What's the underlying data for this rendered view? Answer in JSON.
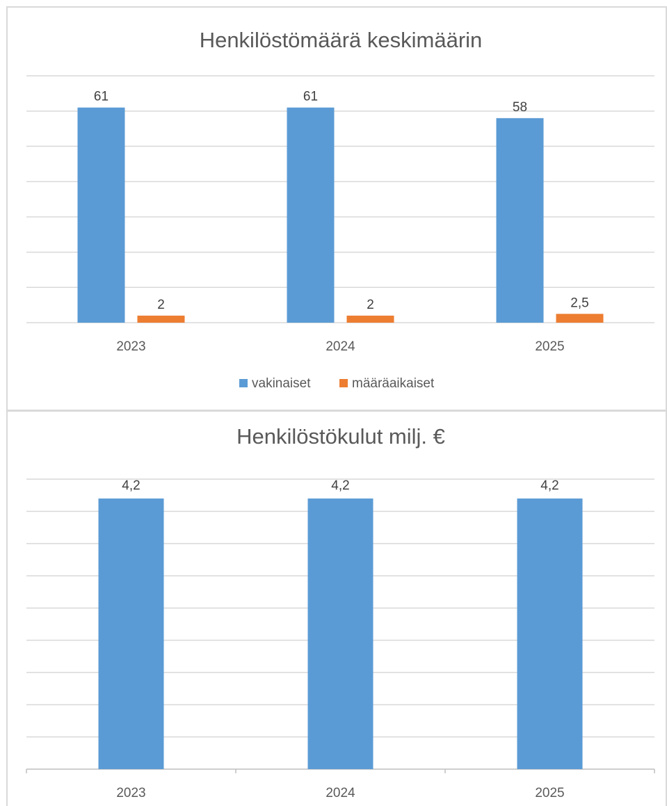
{
  "chart_data": [
    {
      "type": "bar",
      "title": "Henkilöstömäärä keskimäärin",
      "categories": [
        "2023",
        "2024",
        "2025"
      ],
      "series": [
        {
          "name": "vakinaiset",
          "values": [
            61,
            61,
            58
          ],
          "labels": [
            "61",
            "61",
            "58"
          ],
          "color": "#5b9bd5"
        },
        {
          "name": "määräaikaiset",
          "values": [
            2,
            2,
            2.5
          ],
          "labels": [
            "2",
            "2",
            "2,5"
          ],
          "color": "#ed7d31"
        }
      ],
      "ylim": [
        0,
        70
      ],
      "grid": true,
      "legend": "bottom"
    },
    {
      "type": "bar",
      "title": "Henkilöstökulut milj. €",
      "categories": [
        "2023",
        "2024",
        "2025"
      ],
      "series": [
        {
          "values": [
            4.2,
            4.2,
            4.2
          ],
          "labels": [
            "4,2",
            "4,2",
            "4,2"
          ],
          "color": "#5b9bd5"
        }
      ],
      "ylim": [
        0,
        4.5
      ],
      "grid": true,
      "legend": "none"
    }
  ]
}
